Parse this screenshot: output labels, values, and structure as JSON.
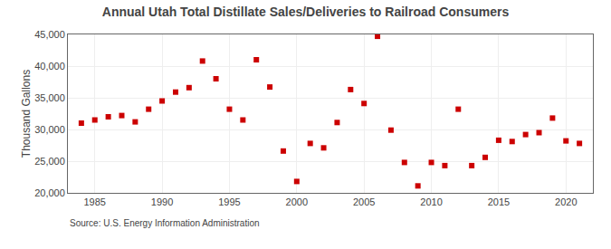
{
  "chart_data": {
    "type": "scatter",
    "title": "Annual Utah Total Distillate Sales/Deliveries to Railroad Consumers",
    "ylabel": "Thousand Gallons",
    "annotations": [
      "Source: U.S. Energy Information Administration"
    ],
    "x": [
      1984,
      1985,
      1986,
      1987,
      1988,
      1989,
      1990,
      1991,
      1992,
      1993,
      1994,
      1995,
      1996,
      1997,
      1998,
      1999,
      2000,
      2001,
      2002,
      2003,
      2004,
      2005,
      2006,
      2007,
      2008,
      2009,
      2010,
      2011,
      2012,
      2013,
      2014,
      2015,
      2016,
      2017,
      2018,
      2019,
      2020,
      2021
    ],
    "values": [
      31000,
      31500,
      32000,
      32200,
      31200,
      33200,
      34500,
      35900,
      36600,
      40800,
      38000,
      33200,
      31500,
      41000,
      36700,
      26600,
      21800,
      27800,
      27100,
      31100,
      36300,
      34100,
      44700,
      29900,
      24800,
      21100,
      24800,
      24300,
      33200,
      24300,
      25600,
      28300,
      28100,
      29200,
      29500,
      31800,
      28200,
      27800
    ],
    "color": "#cc0000",
    "marker": "square",
    "xlim": [
      1983,
      2022
    ],
    "xticks": [
      1985,
      1990,
      1995,
      2000,
      2005,
      2010,
      2015,
      2020
    ],
    "ylim": [
      20000,
      45000
    ],
    "yticks": [
      {
        "value": 20000,
        "label": "20,000"
      },
      {
        "value": 25000,
        "label": "25,000"
      },
      {
        "value": 30000,
        "label": "30,000"
      },
      {
        "value": 35000,
        "label": "35,000"
      },
      {
        "value": 40000,
        "label": "40,000"
      },
      {
        "value": 45000,
        "label": "45,000"
      }
    ],
    "grid": true
  }
}
